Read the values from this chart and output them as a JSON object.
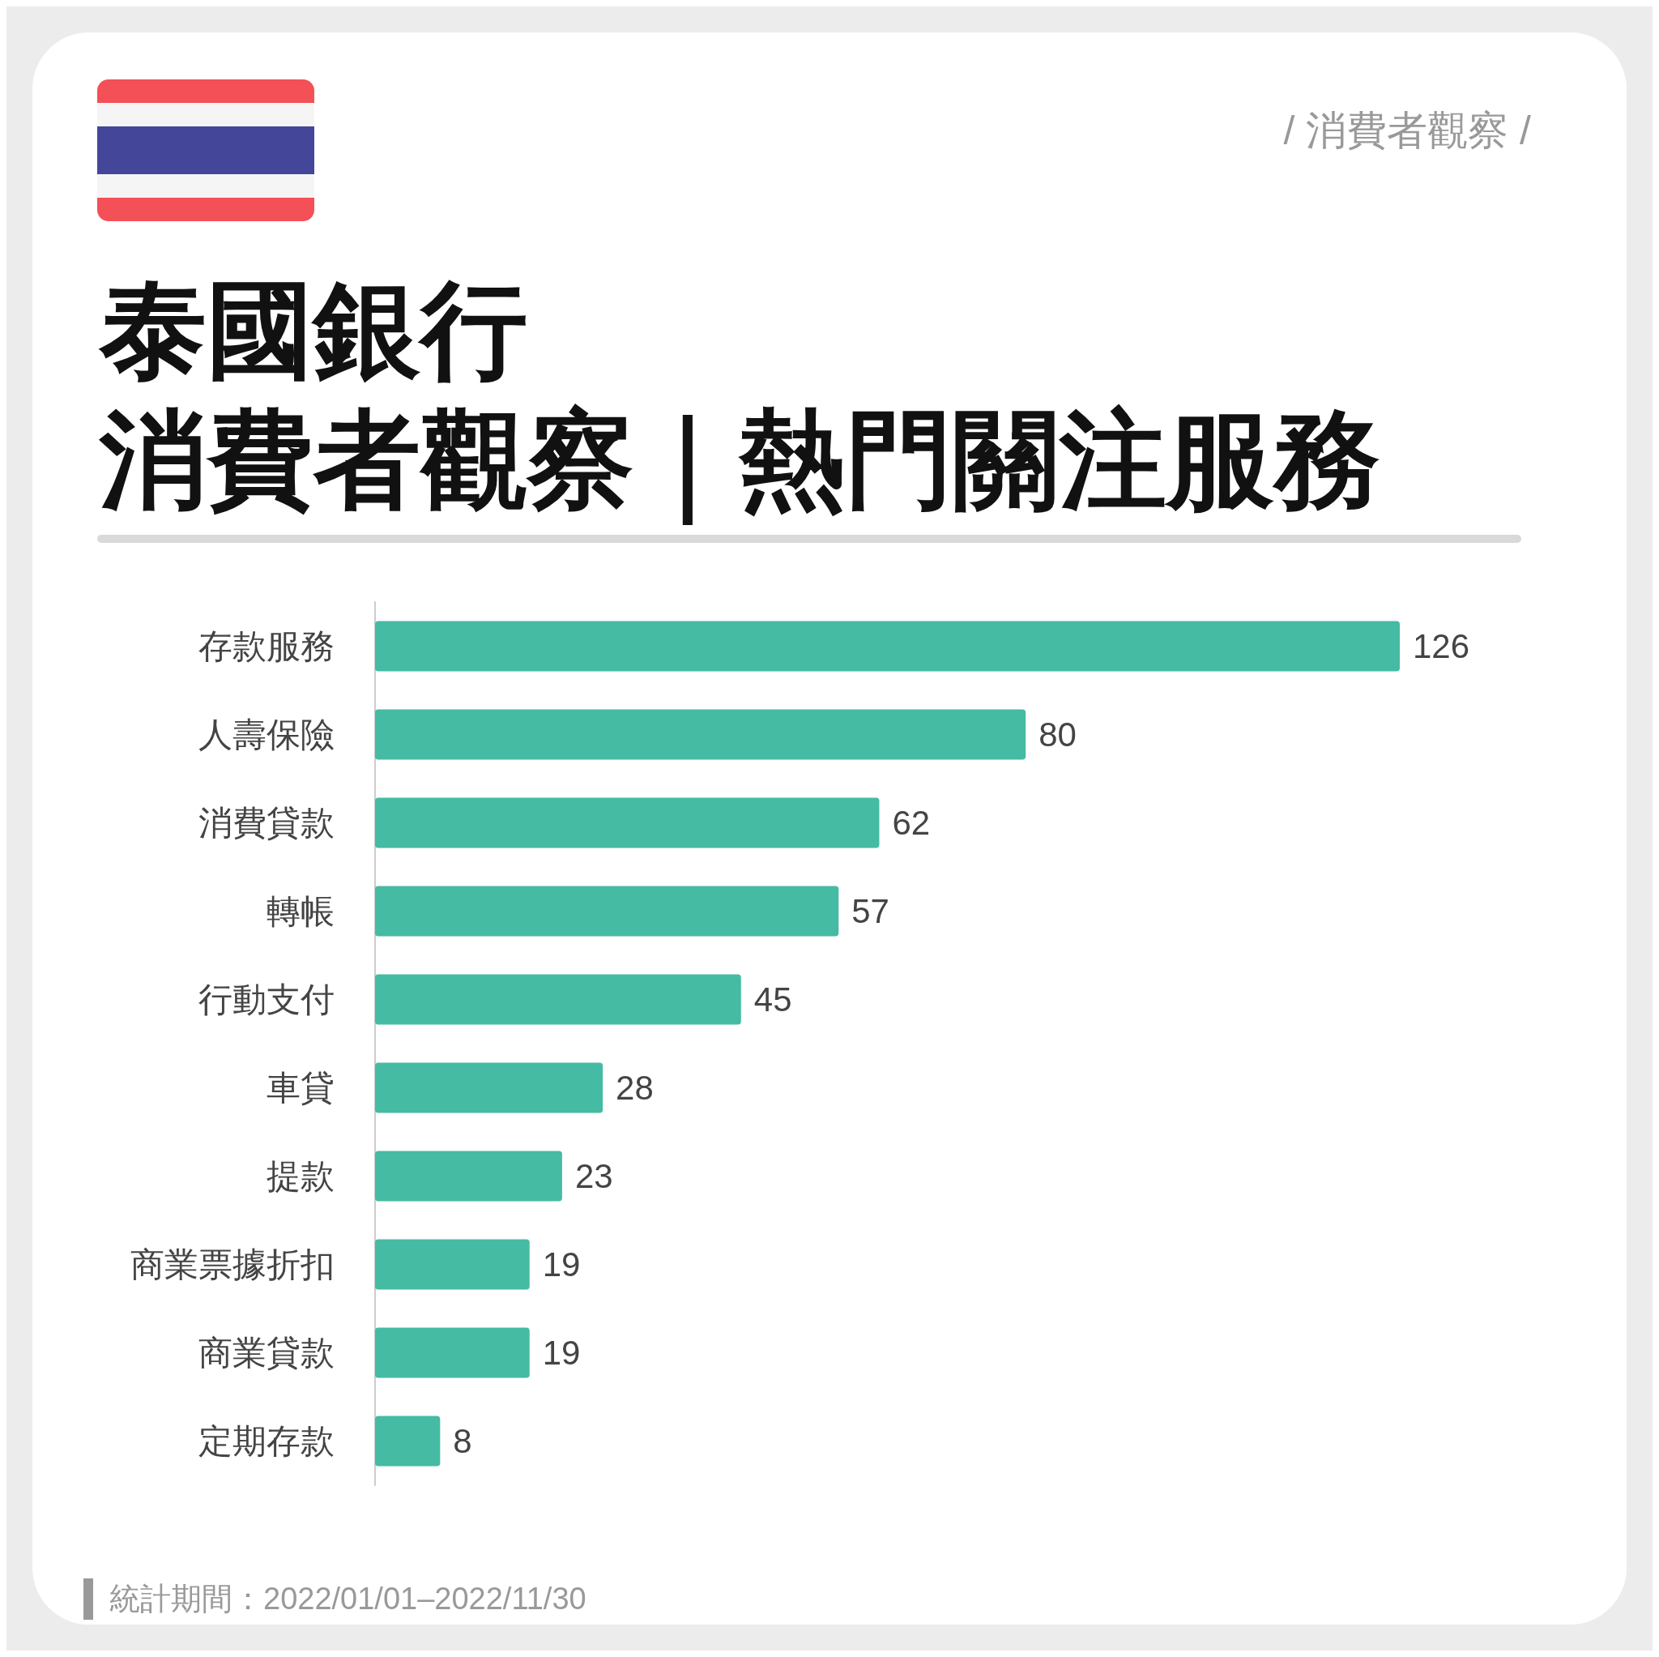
{
  "chart_data": {
    "type": "bar",
    "orientation": "horizontal",
    "title": "泰國銀行",
    "subtitle": "消費者觀察｜熱門關注服務",
    "categories": [
      "存款服務",
      "人壽保險",
      "消費貸款",
      "轉帳",
      "行動支付",
      "車貸",
      "提款",
      "商業票據折扣",
      "商業貸款",
      "定期存款"
    ],
    "values": [
      126,
      80,
      62,
      57,
      45,
      28,
      23,
      19,
      19,
      8
    ],
    "color": "#45bba3",
    "data_labels": true,
    "annotations": [
      "/ 消費者觀察 /",
      "統計期間：2022/01/01–2022/11/30"
    ]
  }
}
